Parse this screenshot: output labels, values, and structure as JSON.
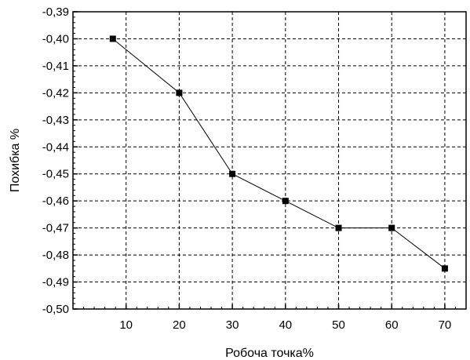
{
  "chart_data": {
    "type": "line",
    "title": "",
    "xlabel": "Робоча точка%",
    "ylabel": "Похибка %",
    "x": [
      7.5,
      20,
      30,
      40,
      50,
      60,
      70
    ],
    "series": [
      {
        "values": [
          -0.4,
          -0.42,
          -0.45,
          -0.46,
          -0.47,
          -0.47,
          -0.485
        ]
      }
    ],
    "xlim": [
      0,
      74
    ],
    "ylim": [
      -0.5,
      -0.39
    ],
    "xticks": [
      10,
      20,
      30,
      40,
      50,
      60,
      70
    ],
    "xtick_labels": [
      "10",
      "20",
      "30",
      "40",
      "50",
      "60",
      "70"
    ],
    "yticks": [
      -0.39,
      -0.4,
      -0.41,
      -0.42,
      -0.43,
      -0.44,
      -0.45,
      -0.46,
      -0.47,
      -0.48,
      -0.49,
      -0.5
    ],
    "ytick_labels": [
      "-0,39",
      "-0,40",
      "-0,41",
      "-0,42",
      "-0,43",
      "-0,44",
      "-0,45",
      "-0,46",
      "-0,47",
      "-0,48",
      "-0,49",
      "-0,50"
    ],
    "grid": true,
    "marker": "square",
    "colors": {
      "line": "#000000",
      "marker": "#000000",
      "grid": "#000000"
    }
  }
}
